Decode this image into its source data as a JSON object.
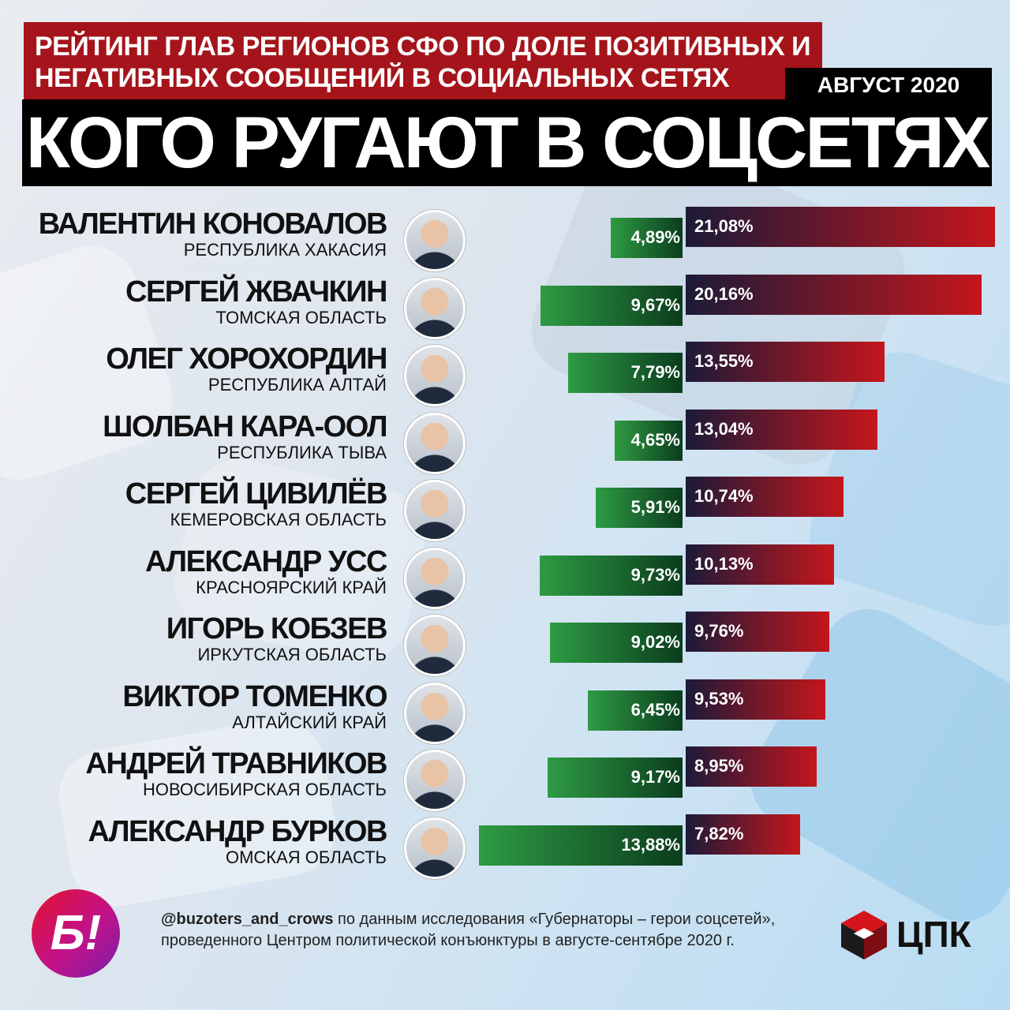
{
  "header": {
    "subtitle_line1": "РЕЙТИНГ ГЛАВ РЕГИОНОВ СФО ПО ДОЛЕ ПОЗИТИВНЫХ И",
    "subtitle_line2": "НЕГАТИВНЫХ СООБЩЕНИЙ В СОЦИАЛЬНЫХ СЕТЯХ",
    "date": "АВГУСТ 2020",
    "title": "КОГО РУГАЮТ В СОЦСЕТЯХ"
  },
  "chart_data": {
    "type": "bar",
    "title": "КОГО РУГАЮТ В СОЦСЕТЯХ",
    "categories": [
      "ВАЛЕНТИН КОНОВАЛОВ",
      "СЕРГЕЙ ЖВАЧКИН",
      "ОЛЕГ ХОРОХОРДИН",
      "ШОЛБАН КАРА-ООЛ",
      "СЕРГЕЙ ЦИВИЛЁВ",
      "АЛЕКСАНДР УСС",
      "ИГОРЬ КОБЗЕВ",
      "ВИКТОР ТОМЕНКО",
      "АНДРЕЙ ТРАВНИКОВ",
      "АЛЕКСАНДР БУРКОВ"
    ],
    "regions": [
      "РЕСПУБЛИКА ХАКАСИЯ",
      "ТОМСКАЯ ОБЛАСТЬ",
      "РЕСПУБЛИКА АЛТАЙ",
      "РЕСПУБЛИКА ТЫВА",
      "КЕМЕРОВСКАЯ ОБЛАСТЬ",
      "КРАСНОЯРСКИЙ КРАЙ",
      "ИРКУТСКАЯ ОБЛАСТЬ",
      "АЛТАЙСКИЙ КРАЙ",
      "НОВОСИБИРСКАЯ ОБЛАСТЬ",
      "ОМСКАЯ ОБЛАСТЬ"
    ],
    "series": [
      {
        "values": [
          4.89,
          9.67,
          7.79,
          4.65,
          5.91,
          9.73,
          9.02,
          6.45,
          9.17,
          13.88
        ],
        "labels": [
          "4,89%",
          "9,67%",
          "7,79%",
          "4,65%",
          "5,91%",
          "9,73%",
          "9,02%",
          "6,45%",
          "9,17%",
          "13,88%"
        ],
        "color": "#2e9b43"
      },
      {
        "values": [
          21.08,
          20.16,
          13.55,
          13.04,
          10.74,
          10.13,
          9.76,
          9.53,
          8.95,
          7.82
        ],
        "labels": [
          "21,08%",
          "20,16%",
          "13,55%",
          "13,04%",
          "10,74%",
          "10,13%",
          "9,76%",
          "9,53%",
          "8,95%",
          "7,82%"
        ],
        "color": "#c4161c"
      }
    ]
  },
  "footer": {
    "handle": "@buzoters_and_crows",
    "text_line1": " по данным исследования «Губернаторы – герои соцсетей»,",
    "text_line2": "проведенного Центром политической конъюнктуры в августе-сентябре 2020 г.",
    "logo_left": "Б!",
    "logo_right": "ЦПК"
  }
}
